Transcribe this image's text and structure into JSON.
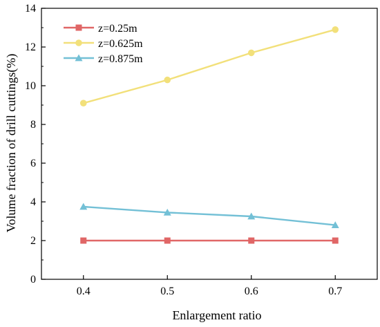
{
  "chart_data": {
    "type": "line",
    "title": "",
    "xlabel": "Enlargement ratio",
    "ylabel": "Volume fraction of drill cuttings(%)",
    "x": [
      0.4,
      0.5,
      0.6,
      0.7
    ],
    "xlim": [
      0.35,
      0.75
    ],
    "ylim": [
      0,
      14
    ],
    "xticks": [
      "0.4",
      "0.5",
      "0.6",
      "0.7"
    ],
    "yticks": [
      "0",
      "2",
      "4",
      "6",
      "8",
      "10",
      "12",
      "14"
    ],
    "grid": false,
    "legend": "top-left",
    "series": [
      {
        "name": "z=0.25m",
        "marker": "square",
        "color": "#e06666",
        "values": [
          2.0,
          2.0,
          2.0,
          2.0
        ]
      },
      {
        "name": "z=0.625m",
        "marker": "circle",
        "color": "#f2e07a",
        "values": [
          9.1,
          10.3,
          11.7,
          12.9
        ]
      },
      {
        "name": "z=0.875m",
        "marker": "triangle",
        "color": "#73c0d6",
        "values": [
          3.75,
          3.45,
          3.25,
          2.8
        ]
      }
    ]
  }
}
